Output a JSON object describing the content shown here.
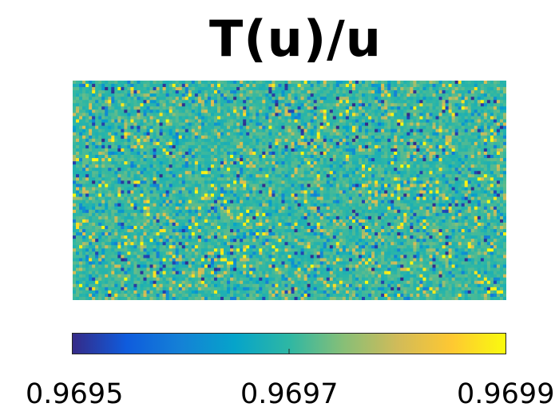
{
  "chart_data": {
    "type": "heatmap",
    "title": "T(u)/u",
    "colorbar": {
      "orientation": "horizontal",
      "placement": "bottom",
      "colormap": "parula",
      "range": [
        0.9695,
        0.9699
      ],
      "tick_values": [
        0.9695,
        0.9697,
        0.9699
      ],
      "tick_labels": [
        "0.9695",
        "0.9697",
        "0.9699"
      ]
    },
    "grid": {
      "columns": 135,
      "rows": 68,
      "baseline_value": 0.9697,
      "value_spread": 0.0002,
      "note_values": "dense noisy field centered near 0.9697 with sparse outliers toward both extremes"
    },
    "axes_visible": false
  },
  "colors": {
    "parula_stops": [
      "#352a87",
      "#0f5cdd",
      "#1481d6",
      "#06a4ca",
      "#2eb7a4",
      "#87bf77",
      "#d1bb59",
      "#fec832",
      "#f9fb0e"
    ]
  }
}
